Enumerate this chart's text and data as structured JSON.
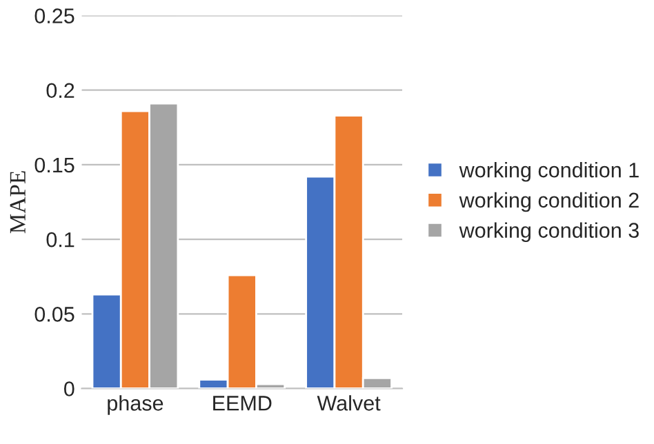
{
  "chart_data": {
    "type": "bar",
    "ylabel": "MAPE",
    "categories": [
      "phase",
      "EEMD",
      "Walvet"
    ],
    "series": [
      {
        "name": "working condition 1",
        "color": "#4472c4",
        "values": [
          0.063,
          0.006,
          0.142
        ]
      },
      {
        "name": "working condition 2",
        "color": "#ed7d31",
        "values": [
          0.186,
          0.076,
          0.183
        ]
      },
      {
        "name": "working condition 3",
        "color": "#a5a5a5",
        "values": [
          0.191,
          0.003,
          0.007
        ]
      }
    ],
    "ylim": [
      0,
      0.25
    ],
    "yticks": [
      0,
      0.05,
      0.1,
      0.15,
      0.2,
      0.25
    ],
    "grid": "y",
    "legend": "right"
  }
}
